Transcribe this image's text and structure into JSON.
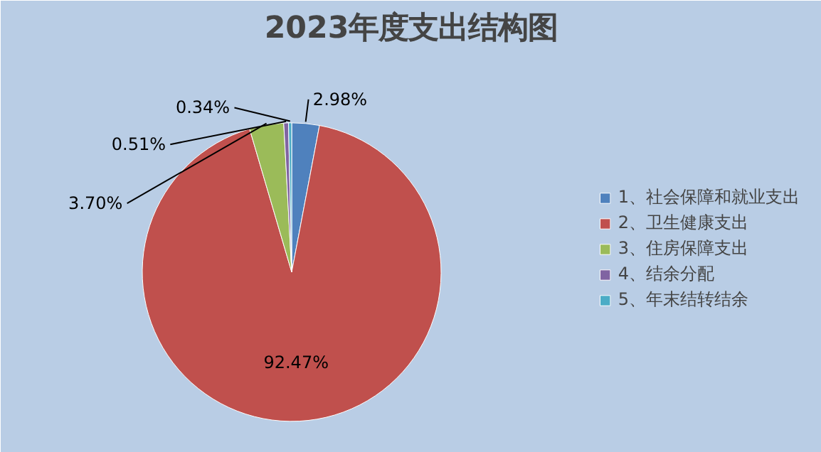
{
  "chart_data": {
    "type": "pie",
    "title": "2023年度支出结构图",
    "categories": [
      "1、社会保障和就业支出",
      "2、卫生健康支出",
      "3、住房保障支出",
      "4、结余分配",
      "5、年末结转结余"
    ],
    "values": [
      2.98,
      92.47,
      3.7,
      0.51,
      0.34
    ],
    "colors": [
      "#4f81bd",
      "#c0504d",
      "#9bbb59",
      "#8064a2",
      "#4bacc6"
    ],
    "value_labels": [
      "2.98%",
      "92.47%",
      "3.70%",
      "0.51%",
      "0.34%"
    ],
    "legend": "right"
  }
}
